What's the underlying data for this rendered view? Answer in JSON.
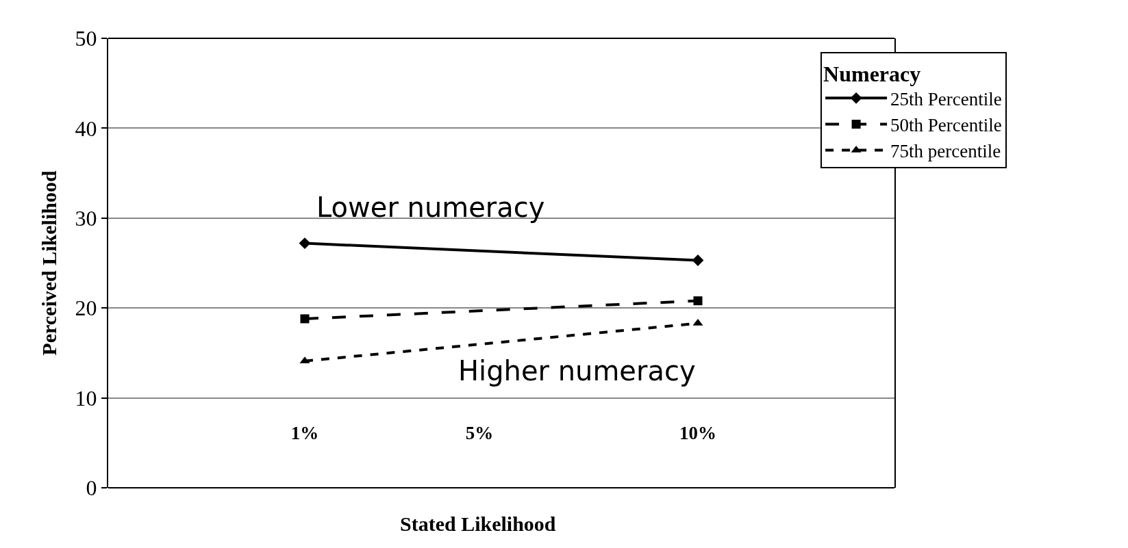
{
  "chart_data": {
    "type": "line",
    "xlabel": "Stated Likelihood",
    "ylabel": "Perceived Likelihood",
    "legend_title": "Numeracy",
    "x": [
      1,
      10
    ],
    "series": [
      {
        "name": "25th Percentile",
        "color": "#000000",
        "values": [
          27.2,
          25.3
        ],
        "marker": "diamond",
        "line_style": "solid"
      },
      {
        "name": "50th Percentile",
        "color": "#000000",
        "values": [
          18.8,
          20.8
        ],
        "marker": "square",
        "line_style": "dashed"
      },
      {
        "name": "75th percentile",
        "color": "#000000",
        "values": [
          14.1,
          18.3
        ],
        "marker": "triangle",
        "line_style": "dotted"
      }
    ],
    "annotations": [
      "Lower numeracy",
      "Higher numeracy"
    ],
    "xlim": [
      -3.5,
      14.5
    ],
    "xticks": [
      {
        "value": 1,
        "label": "1%"
      },
      {
        "value": 5,
        "label": "5%"
      },
      {
        "value": 10,
        "label": "10%"
      }
    ],
    "ylim": [
      0,
      50
    ],
    "yticks": [
      0,
      10,
      20,
      30,
      40,
      50
    ],
    "grid": "y",
    "legend": "top right"
  }
}
